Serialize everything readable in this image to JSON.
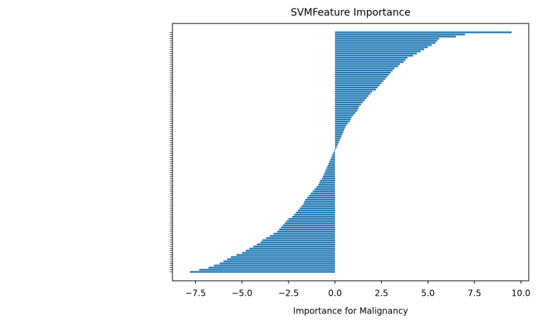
{
  "chart_data": {
    "type": "barh",
    "title": "SVMFeature Importance",
    "xlabel": "Importance for Malignancy",
    "color": "#1f77b4",
    "categories": [
      null,
      null,
      null,
      null,
      null,
      null,
      null,
      null,
      null,
      null,
      null,
      null,
      null,
      null,
      null,
      null,
      null,
      null,
      null,
      null,
      null,
      null,
      null,
      null,
      null,
      null,
      null,
      null,
      null,
      null,
      null,
      null,
      null,
      null,
      null,
      null,
      null,
      null,
      null,
      null,
      null,
      null,
      null,
      null,
      null,
      null,
      null,
      null,
      null,
      null,
      null,
      null,
      null,
      null,
      null,
      null,
      null,
      null,
      null,
      null,
      null,
      null,
      null,
      null,
      null,
      null,
      null,
      null,
      null,
      null,
      null,
      null,
      null,
      null,
      null,
      null,
      null,
      null,
      null,
      null,
      null,
      null,
      null,
      null,
      null,
      null,
      null,
      null,
      null,
      null,
      null,
      null,
      null,
      null,
      null,
      null,
      null,
      null,
      null,
      null,
      null,
      null,
      null,
      null,
      null,
      null,
      null,
      null,
      null,
      null,
      null,
      null,
      null,
      null
    ],
    "values": [
      9.5,
      7.0,
      6.5,
      5.6,
      5.5,
      5.4,
      5.2,
      5.0,
      4.8,
      4.6,
      4.4,
      4.2,
      3.9,
      3.8,
      3.7,
      3.5,
      3.4,
      3.2,
      3.1,
      3.0,
      2.9,
      2.8,
      2.7,
      2.6,
      2.5,
      2.4,
      2.3,
      2.2,
      2.0,
      1.9,
      1.8,
      1.7,
      1.6,
      1.5,
      1.4,
      1.3,
      1.25,
      1.2,
      1.1,
      1.0,
      0.9,
      0.85,
      0.8,
      0.7,
      0.6,
      0.55,
      0.5,
      0.45,
      0.4,
      0.35,
      0.3,
      0.25,
      0.2,
      0.15,
      0.1,
      0.05,
      -0.05,
      -0.1,
      -0.15,
      -0.2,
      -0.25,
      -0.3,
      -0.35,
      -0.4,
      -0.45,
      -0.5,
      -0.55,
      -0.6,
      -0.65,
      -0.7,
      -0.8,
      -0.85,
      -0.9,
      -1.0,
      -1.1,
      -1.2,
      -1.3,
      -1.4,
      -1.5,
      -1.6,
      -1.65,
      -1.7,
      -1.8,
      -1.9,
      -2.0,
      -2.1,
      -2.2,
      -2.3,
      -2.5,
      -2.6,
      -2.7,
      -2.8,
      -2.9,
      -3.0,
      -3.1,
      -3.3,
      -3.5,
      -3.7,
      -3.9,
      -4.0,
      -4.2,
      -4.4,
      -4.6,
      -4.8,
      -5.0,
      -5.3,
      -5.6,
      -5.8,
      -6.0,
      -6.2,
      -6.5,
      -6.8,
      -7.3,
      -7.8
    ],
    "xlim": [
      -8.74,
      10.42
    ],
    "xticks": [
      {
        "value": -7.5,
        "label": "−7.5"
      },
      {
        "value": -5,
        "label": "−5.0"
      },
      {
        "value": -2.5,
        "label": "−2.5"
      },
      {
        "value": 0,
        "label": "0.0"
      },
      {
        "value": 2.5,
        "label": "2.5"
      },
      {
        "value": 5,
        "label": "5.0"
      },
      {
        "value": 7.5,
        "label": "7.5"
      },
      {
        "value": 10,
        "label": "10.0"
      }
    ]
  }
}
